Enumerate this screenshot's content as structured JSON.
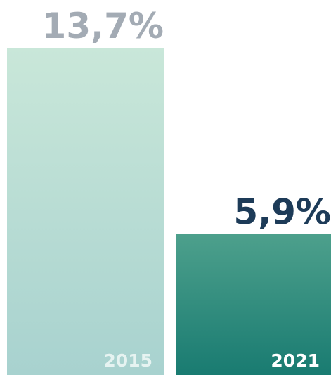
{
  "chart_data": {
    "type": "bar",
    "categories": [
      "2015",
      "2021"
    ],
    "values": [
      13.7,
      5.9
    ],
    "value_labels": [
      "13,7%",
      "5,9%"
    ],
    "colors": [
      [
        "#c9e7d9",
        "#a8d2cf"
      ],
      [
        "#4da08c",
        "#197b71"
      ]
    ],
    "value_label_colors": [
      "#a3abb4",
      "#1d3b58"
    ],
    "category_label_colors": [
      "#e6f3f1",
      "#ffffff"
    ]
  }
}
